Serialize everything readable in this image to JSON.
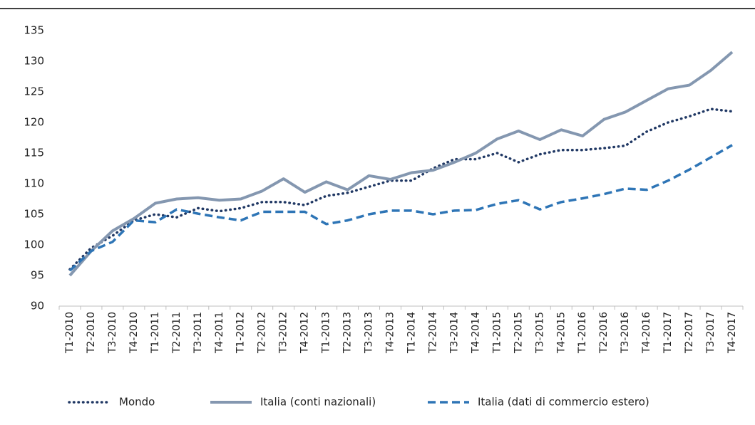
{
  "chart_data": {
    "type": "line",
    "categories": [
      "T1-2010",
      "T2-2010",
      "T3-2010",
      "T4-2010",
      "T1-2011",
      "T2-2011",
      "T3-2011",
      "T4-2011",
      "T1-2012",
      "T2-2012",
      "T3-2012",
      "T4-2012",
      "T1-2013",
      "T2-2013",
      "T3-2013",
      "T4-2013",
      "T1-2014",
      "T2-2014",
      "T3-2014",
      "T4-2014",
      "T1-2015",
      "T2-2015",
      "T3-2015",
      "T4-2015",
      "T1-2016",
      "T2-2016",
      "T3-2016",
      "T4-2016",
      "T1-2017",
      "T2-2017",
      "T3-2017",
      "T4-2017"
    ],
    "series": [
      {
        "name": "Mondo",
        "color": "#203864",
        "dash": "dotted",
        "values": [
          96,
          99.5,
          101.5,
          104,
          105,
          104.5,
          106,
          105.5,
          106,
          107,
          107,
          106.5,
          108,
          108.5,
          109.5,
          110.5,
          110.5,
          112.5,
          114,
          114,
          115,
          113.5,
          114.8,
          115.5,
          115.5,
          115.8,
          116.2,
          118.5,
          120,
          121,
          122.2,
          121.8
        ]
      },
      {
        "name": "Italia (conti nazionali)",
        "color": "#8497b0",
        "dash": "solid",
        "values": [
          95,
          99,
          102.3,
          104.3,
          106.8,
          107.5,
          107.7,
          107.3,
          107.5,
          108.8,
          110.8,
          108.6,
          110.3,
          109,
          111.3,
          110.7,
          111.8,
          112.2,
          113.5,
          115,
          117.3,
          118.6,
          117.2,
          118.8,
          117.8,
          120.5,
          121.7,
          123.6,
          125.5,
          126.1,
          128.5,
          131.5
        ]
      },
      {
        "name": "Italia (dati di commercio estero)",
        "color": "#2e75b6",
        "dash": "dashed",
        "values": [
          95.8,
          99,
          100.5,
          104,
          103.7,
          105.8,
          105.1,
          104.5,
          104,
          105.4,
          105.4,
          105.4,
          103.4,
          104,
          105,
          105.6,
          105.6,
          105,
          105.6,
          105.7,
          106.7,
          107.3,
          105.8,
          107,
          107.6,
          108.3,
          109.2,
          109,
          110.5,
          112.3,
          114.3,
          116.3
        ]
      }
    ],
    "ylim": [
      90,
      135
    ],
    "yticks": [
      90,
      95,
      100,
      105,
      110,
      115,
      120,
      125,
      130,
      135
    ]
  }
}
